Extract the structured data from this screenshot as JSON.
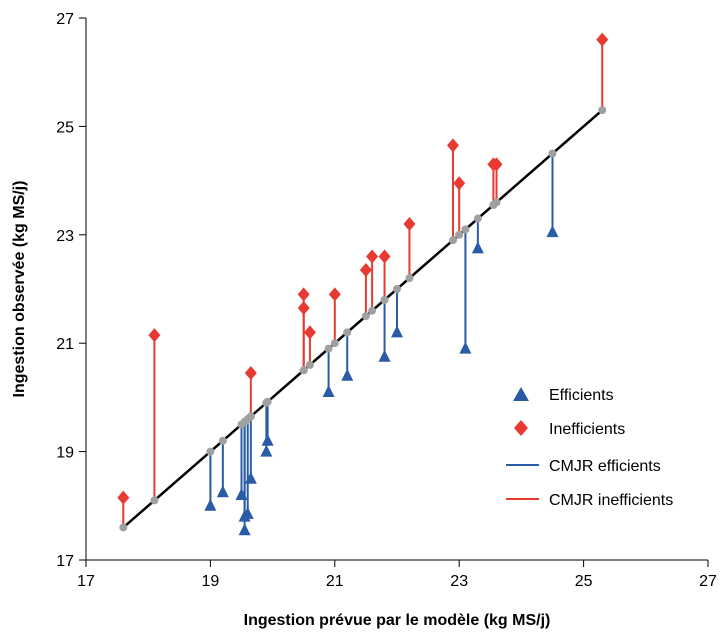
{
  "chart_data": {
    "type": "scatter",
    "title": "",
    "xlabel": "Ingestion prévue par le modèle (kg MS/j)",
    "ylabel": "Ingestion observée (kg MS/j)",
    "xlim": [
      17,
      27
    ],
    "ylim": [
      17,
      27
    ],
    "xticks": [
      "17",
      "19",
      "21",
      "23",
      "25",
      "27"
    ],
    "yticks": [
      "17",
      "19",
      "21",
      "23",
      "25",
      "27"
    ],
    "grid": false,
    "legend_position": "right",
    "legend": {
      "efficients": "Efficients",
      "inefficients": "Inefficients",
      "cmjr_efficients": "CMJR efficients",
      "cmjr_inefficients": "CMJR inefficients"
    },
    "colors": {
      "efficients": "#2a5ba6",
      "inefficients": "#e63a33",
      "identity_line": "#000000",
      "predicted_point": "#a0a0a0"
    },
    "identity_line": {
      "x": [
        17.6,
        25.3
      ],
      "y": [
        17.6,
        25.3
      ]
    },
    "series": [
      {
        "key": "efficients",
        "points": [
          {
            "x": 19.0,
            "y": 18.0
          },
          {
            "x": 19.2,
            "y": 18.25
          },
          {
            "x": 19.5,
            "y": 18.2
          },
          {
            "x": 19.55,
            "y": 17.8
          },
          {
            "x": 19.55,
            "y": 17.55
          },
          {
            "x": 19.6,
            "y": 17.85
          },
          {
            "x": 19.65,
            "y": 18.5
          },
          {
            "x": 19.9,
            "y": 19.0
          },
          {
            "x": 19.92,
            "y": 19.2
          },
          {
            "x": 20.9,
            "y": 20.1
          },
          {
            "x": 21.2,
            "y": 20.4
          },
          {
            "x": 21.8,
            "y": 20.75
          },
          {
            "x": 22.0,
            "y": 21.2
          },
          {
            "x": 23.1,
            "y": 20.9
          },
          {
            "x": 23.3,
            "y": 22.75
          },
          {
            "x": 24.5,
            "y": 23.05
          }
        ]
      },
      {
        "key": "inefficients",
        "points": [
          {
            "x": 17.6,
            "y": 18.15
          },
          {
            "x": 18.1,
            "y": 21.15
          },
          {
            "x": 19.65,
            "y": 20.45
          },
          {
            "x": 20.5,
            "y": 21.9
          },
          {
            "x": 20.5,
            "y": 21.65
          },
          {
            "x": 20.6,
            "y": 21.2
          },
          {
            "x": 21.0,
            "y": 21.9
          },
          {
            "x": 21.5,
            "y": 22.35
          },
          {
            "x": 21.6,
            "y": 22.6
          },
          {
            "x": 21.8,
            "y": 22.6
          },
          {
            "x": 22.2,
            "y": 23.2
          },
          {
            "x": 22.9,
            "y": 24.65
          },
          {
            "x": 23.0,
            "y": 23.95
          },
          {
            "x": 23.55,
            "y": 24.3
          },
          {
            "x": 23.6,
            "y": 24.3
          },
          {
            "x": 25.3,
            "y": 26.6
          }
        ]
      }
    ]
  }
}
